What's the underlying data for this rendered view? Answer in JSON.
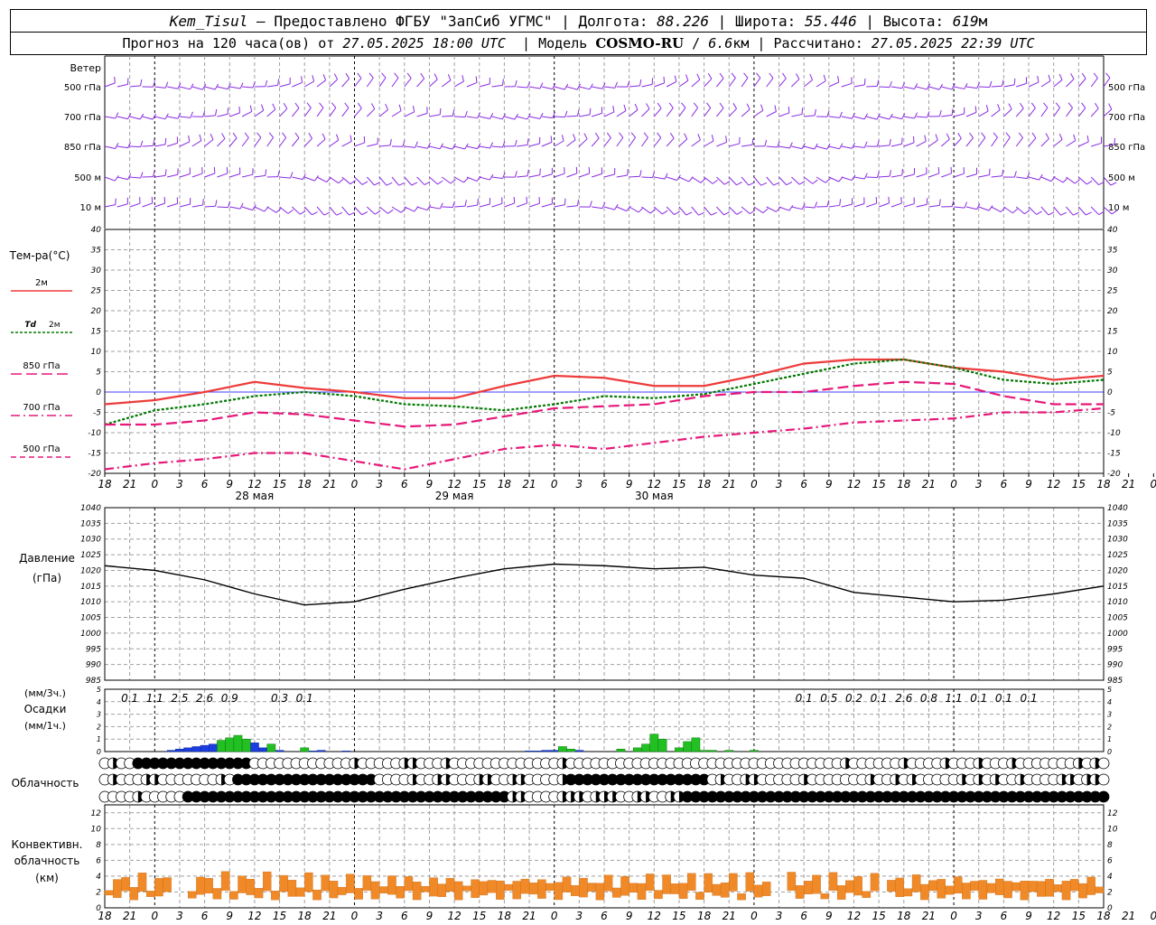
{
  "header": {
    "station": "Kem_Tisul",
    "provider": "– Предоставлено ФГБУ \"ЗапСиб УГМС\"",
    "lon_label": "Долгота:",
    "lon_value": "88.226",
    "lat_label": "Широта:",
    "lat_value": "55.446",
    "alt_label": "Высота:",
    "alt_value": "619",
    "alt_unit": "м",
    "forecast_label": "Прогноз на 120 часа(ов) от",
    "forecast_start": "27.05.2025 18:00 UTC",
    "model_label": "Модель",
    "model_name": "COSMO-RU",
    "model_res": "6.6",
    "model_res_unit": "км",
    "calc_label": "Рассчитано:",
    "calc_value": "27.05.2025 22:39 UTC"
  },
  "colors": {
    "wind": "#8a2be2",
    "t2m": "#ee3b3b",
    "td2m": "#007800",
    "t850": "#e6197a",
    "t700": "#e6197a",
    "t500": "#e6197a",
    "pressure": "#000000",
    "precip_3h": "#1c3ee0",
    "precip_1h": "#22c022",
    "convective": "#f08a28",
    "grid": "#a0a0a0",
    "zero_line": "#4040ff"
  },
  "chart_data": [
    {
      "type": "wind_barbs",
      "title": "Ветер",
      "levels": [
        "500 гПа",
        "700 гПа",
        "850 гПа",
        "500 м",
        "10 м"
      ]
    },
    {
      "type": "line",
      "ylabel": "Тем-ра(°C)",
      "ylim": [
        -20,
        40
      ],
      "yticks": [
        -20,
        -15,
        -10,
        -5,
        0,
        5,
        10,
        15,
        20,
        25,
        30,
        35,
        40
      ],
      "x_hours": [
        0,
        6,
        12,
        18,
        24,
        30,
        36,
        42,
        48,
        54,
        60,
        66,
        72,
        78,
        84,
        90,
        96,
        102,
        108,
        114,
        120
      ],
      "series": [
        {
          "name": "2м",
          "values": [
            -3,
            -2,
            0,
            2.5,
            1,
            0,
            -1.5,
            -1.5,
            1.5,
            4,
            3.5,
            1.5,
            1.5,
            4,
            7,
            8,
            8,
            6,
            5,
            3,
            4
          ]
        },
        {
          "name": "Td 2м",
          "values": [
            -8,
            -4.5,
            -3,
            -1,
            0,
            -1,
            -3,
            -3.5,
            -4.5,
            -3,
            -1,
            -1.5,
            -0.5,
            2,
            4.5,
            7,
            8,
            6,
            3,
            2,
            3
          ]
        },
        {
          "name": "850 гПа",
          "values": [
            -8,
            -8,
            -7,
            -5,
            -5.5,
            -7,
            -8.5,
            -8,
            -6,
            -4,
            -3.5,
            -3,
            -1,
            0,
            0,
            1.5,
            2.5,
            2,
            -1,
            -3,
            -3
          ]
        },
        {
          "name": "700 гПа",
          "values": [
            -19,
            -17.5,
            -16.5,
            -15,
            -15,
            -17,
            -19,
            -16.5,
            -14,
            -13,
            -14,
            -12.5,
            -11,
            -10,
            -9,
            -7.5,
            -7,
            -6.5,
            -5,
            -5,
            -4
          ]
        },
        {
          "name": "500 гПа",
          "values": [
            -19,
            -17.5,
            -16.5,
            -15,
            -15,
            -17,
            -19,
            -16.5,
            -14,
            -13,
            -14,
            -12.5,
            -11,
            -10,
            -9,
            -7.5,
            -7,
            -6.5,
            -5,
            -5,
            -4
          ]
        }
      ],
      "x_tick_labels": [
        "18",
        "21",
        "0",
        "3",
        "6",
        "9",
        "12",
        "15",
        "18",
        "21",
        "0",
        "3",
        "6",
        "9",
        "12",
        "15",
        "18",
        "21",
        "0",
        "3",
        "6",
        "9",
        "12",
        "15",
        "18",
        "21",
        "0",
        "3",
        "6",
        "9",
        "12",
        "15",
        "18",
        "21",
        "0",
        "3",
        "6",
        "9",
        "12",
        "15",
        "18",
        "21",
        "0"
      ],
      "day_labels": [
        "28 мая",
        "29 мая",
        "30 мая"
      ]
    },
    {
      "type": "line",
      "ylabel": "Давление",
      "ylabel_unit": "(гПа)",
      "ylim": [
        985,
        1040
      ],
      "yticks": [
        985,
        990,
        995,
        1000,
        1005,
        1010,
        1015,
        1020,
        1025,
        1030,
        1035,
        1040
      ],
      "x_hours": [
        0,
        6,
        12,
        18,
        24,
        30,
        36,
        42,
        48,
        54,
        60,
        66,
        72,
        78,
        84,
        90,
        96,
        102,
        108,
        114,
        120
      ],
      "series": [
        {
          "name": "Давление",
          "values": [
            1021.5,
            1020,
            1017,
            1012.5,
            1009,
            1010,
            1014,
            1017.5,
            1020.5,
            1022,
            1021.5,
            1020.5,
            1021,
            1018.5,
            1017.5,
            1013,
            1011.5,
            1010,
            1010.5,
            1012.5,
            1015
          ]
        }
      ]
    },
    {
      "type": "bar",
      "ylabel": "Осадки",
      "ylabel_3h": "(мм/3ч.)",
      "ylabel_1h": "(мм/1ч.)",
      "ylim": [
        0,
        5
      ],
      "yticks": [
        0,
        1,
        2,
        3,
        4,
        5
      ],
      "labels_3h": [
        {
          "hour": 3,
          "text": "0.1"
        },
        {
          "hour": 6,
          "text": "1.1"
        },
        {
          "hour": 9,
          "text": "2.5"
        },
        {
          "hour": 12,
          "text": "2.6"
        },
        {
          "hour": 15,
          "text": "0.9"
        },
        {
          "hour": 21,
          "text": "0.3"
        },
        {
          "hour": 24,
          "text": "0.1"
        },
        {
          "hour": 84,
          "text": "0.1"
        },
        {
          "hour": 87,
          "text": "0.5"
        },
        {
          "hour": 90,
          "text": "0.2"
        },
        {
          "hour": 93,
          "text": "0.1"
        },
        {
          "hour": 96,
          "text": "2.6"
        },
        {
          "hour": 99,
          "text": "0.8"
        },
        {
          "hour": 102,
          "text": "1.1"
        },
        {
          "hour": 105,
          "text": "0.1"
        },
        {
          "hour": 108,
          "text": "0.1"
        },
        {
          "hour": 111,
          "text": "0.1"
        }
      ],
      "precip_3h": [
        {
          "hour": 8,
          "value": 0.1
        },
        {
          "hour": 9,
          "value": 0.2
        },
        {
          "hour": 10,
          "value": 0.3
        },
        {
          "hour": 11,
          "value": 0.4
        },
        {
          "hour": 12,
          "value": 0.5
        },
        {
          "hour": 13,
          "value": 0.6
        },
        {
          "hour": 14,
          "value": 0.7
        },
        {
          "hour": 15,
          "value": 0.8
        },
        {
          "hour": 16,
          "value": 0.9
        },
        {
          "hour": 17,
          "value": 0.9
        },
        {
          "hour": 18,
          "value": 0.7
        },
        {
          "hour": 19,
          "value": 0.3
        },
        {
          "hour": 21,
          "value": 0.1
        },
        {
          "hour": 25,
          "value": 0.05
        },
        {
          "hour": 26,
          "value": 0.1
        },
        {
          "hour": 29,
          "value": 0.05
        },
        {
          "hour": 51,
          "value": 0.05
        },
        {
          "hour": 52,
          "value": 0.05
        },
        {
          "hour": 53,
          "value": 0.1
        },
        {
          "hour": 54,
          "value": 0.1
        },
        {
          "hour": 55,
          "value": 0.2
        },
        {
          "hour": 56,
          "value": 0.1
        },
        {
          "hour": 57,
          "value": 0.1
        }
      ],
      "precip_1h": [
        {
          "hour": 14,
          "value": 0.9
        },
        {
          "hour": 15,
          "value": 1.1
        },
        {
          "hour": 16,
          "value": 1.3
        },
        {
          "hour": 17,
          "value": 1.0
        },
        {
          "hour": 20,
          "value": 0.6
        },
        {
          "hour": 24,
          "value": 0.3
        },
        {
          "hour": 55,
          "value": 0.4
        },
        {
          "hour": 56,
          "value": 0.2
        },
        {
          "hour": 62,
          "value": 0.2
        },
        {
          "hour": 64,
          "value": 0.3
        },
        {
          "hour": 65,
          "value": 0.6
        },
        {
          "hour": 66,
          "value": 1.4
        },
        {
          "hour": 67,
          "value": 1.0
        },
        {
          "hour": 69,
          "value": 0.3
        },
        {
          "hour": 70,
          "value": 0.8
        },
        {
          "hour": 71,
          "value": 1.1
        },
        {
          "hour": 72,
          "value": 0.1
        },
        {
          "hour": 73,
          "value": 0.1
        },
        {
          "hour": 75,
          "value": 0.1
        },
        {
          "hour": 78,
          "value": 0.1
        }
      ]
    },
    {
      "type": "table",
      "title": "Облачность",
      "rows": 3
    },
    {
      "type": "bar",
      "ylabel": "Конвективн.",
      "ylabel2": "облачность",
      "ylabel_unit": "(км)",
      "ylim": [
        0,
        13
      ],
      "yticks": [
        0,
        2,
        4,
        6,
        8,
        10,
        12
      ]
    }
  ]
}
